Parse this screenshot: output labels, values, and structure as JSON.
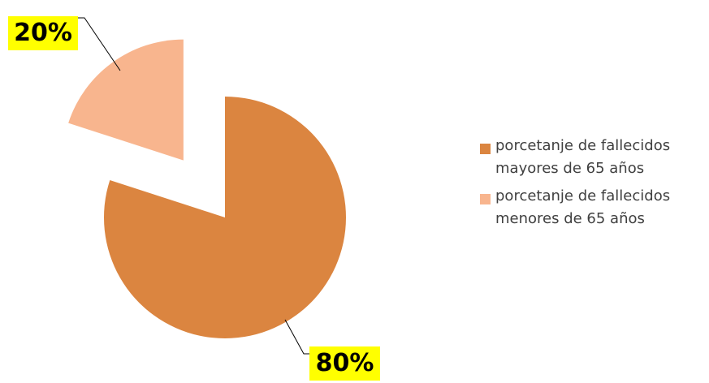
{
  "chart_data": {
    "type": "pie",
    "title": "",
    "categories": [
      "porcetanje de fallecidos mayores de 65 años",
      "porcetanje de fallecidos menores de 65 años"
    ],
    "values": [
      80,
      20
    ],
    "data_labels": [
      "80%",
      "20%"
    ],
    "colors": [
      "#db8540",
      "#f8b58e"
    ],
    "label_background": "#ffff00",
    "exploded_slice": "porcetanje de fallecidos menores de 65 años",
    "legend_position": "right"
  }
}
